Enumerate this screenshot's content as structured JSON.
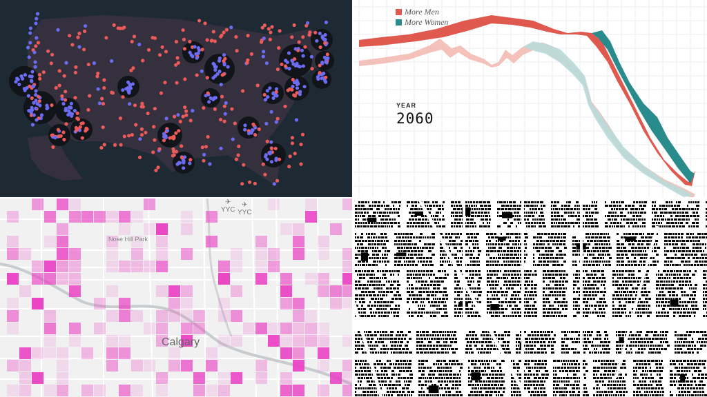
{
  "panels": {
    "sex_ratio_chart": {
      "legend": [
        {
          "label": "More Men",
          "color": "#e0594e"
        },
        {
          "label": "More Women",
          "color": "#2a8b8c"
        }
      ],
      "year_label": "YEAR",
      "year_value": "2060"
    },
    "calgary_map": {
      "city_label": "Calgary",
      "park_label": "Nose Hill Park",
      "airport_labels": [
        "YYC",
        "YYC"
      ],
      "cell_color": "#e93fc3"
    },
    "us_map": {
      "bubble_colors": {
        "red": "#ec5a5a",
        "blue": "#6b6cf2"
      },
      "background": "#1e2a33"
    },
    "figure_ground": {
      "building_color": "#000000",
      "background": "#ffffff"
    }
  }
}
